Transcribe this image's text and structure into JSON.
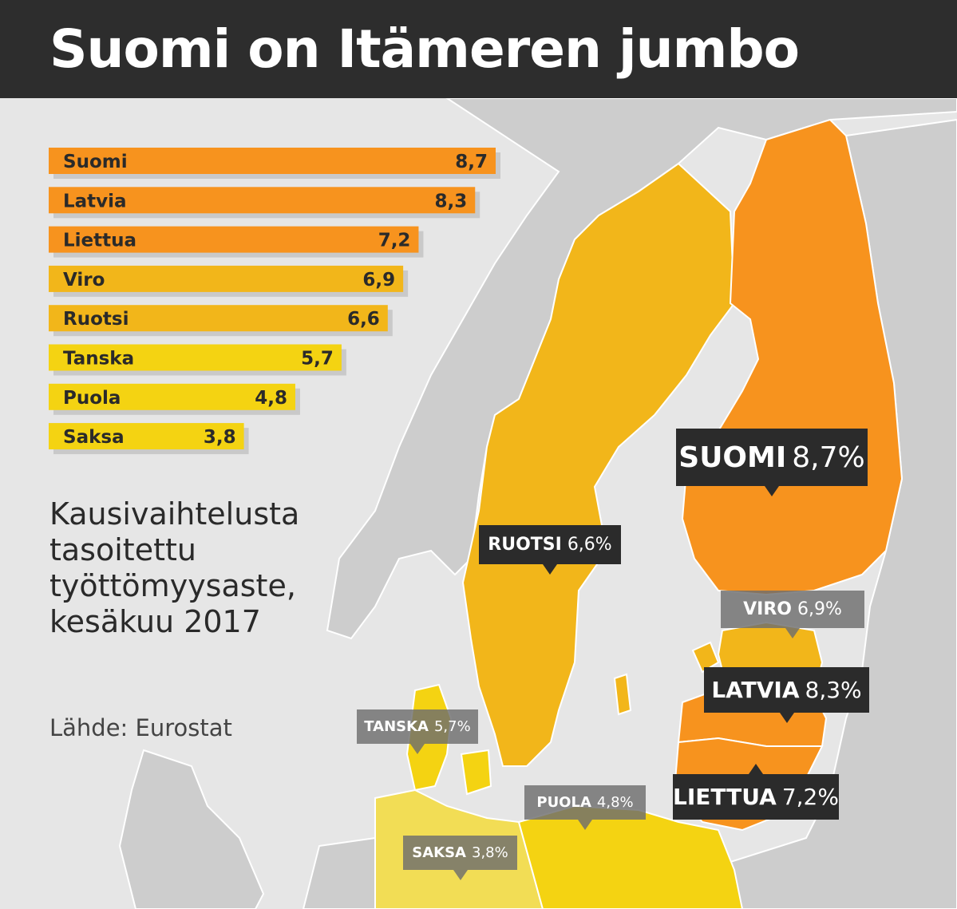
{
  "header": {
    "title": "Suomi on Itämeren jumbo"
  },
  "colors": {
    "top": "#f7931e",
    "mid": "#f2b61a",
    "low": "#f4d312",
    "shadow": "#c9c9c9",
    "land": "#cdcdcd",
    "sea": "#e6e6e6",
    "border": "#ffffff"
  },
  "chart_data": {
    "type": "bar",
    "orientation": "horizontal",
    "categories": [
      "Suomi",
      "Latvia",
      "Liettua",
      "Viro",
      "Ruotsi",
      "Tanska",
      "Puola",
      "Saksa"
    ],
    "values": [
      8.7,
      8.3,
      7.2,
      6.9,
      6.6,
      5.7,
      4.8,
      3.8
    ],
    "value_labels": [
      "8,7",
      "8,3",
      "7,2",
      "6,9",
      "6,6",
      "5,7",
      "4,8",
      "3,8"
    ],
    "color_groups": [
      "top",
      "top",
      "top",
      "mid",
      "mid",
      "low",
      "low",
      "low"
    ],
    "title": "Suomi on Itämeren jumbo",
    "xlabel": "",
    "ylabel": "",
    "xlim": [
      0,
      8.7
    ],
    "grid": false,
    "legend": "none"
  },
  "description": {
    "lines": [
      "Kausivaihtelusta",
      "tasoitettu",
      "työttömyysaste,",
      "kesäkuu 2017"
    ]
  },
  "source": "Lähde: Eurostat",
  "map_labels": [
    {
      "name": "SUOMI",
      "value": "8,7%",
      "style": "dark",
      "size": "large"
    },
    {
      "name": "RUOTSI",
      "value": "6,6%",
      "style": "dark",
      "size": "small"
    },
    {
      "name": "VIRO",
      "value": "6,9%",
      "style": "grey",
      "size": "small"
    },
    {
      "name": "LATVIA",
      "value": "8,3%",
      "style": "dark",
      "size": "medium"
    },
    {
      "name": "LIETTUA",
      "value": "7,2%",
      "style": "dark",
      "size": "medium"
    },
    {
      "name": "TANSKA",
      "value": "5,7%",
      "style": "grey",
      "size": "xsmall"
    },
    {
      "name": "PUOLA",
      "value": "4,8%",
      "style": "grey",
      "size": "xsmall"
    },
    {
      "name": "SAKSA",
      "value": "3,8%",
      "style": "grey",
      "size": "xsmall"
    }
  ]
}
